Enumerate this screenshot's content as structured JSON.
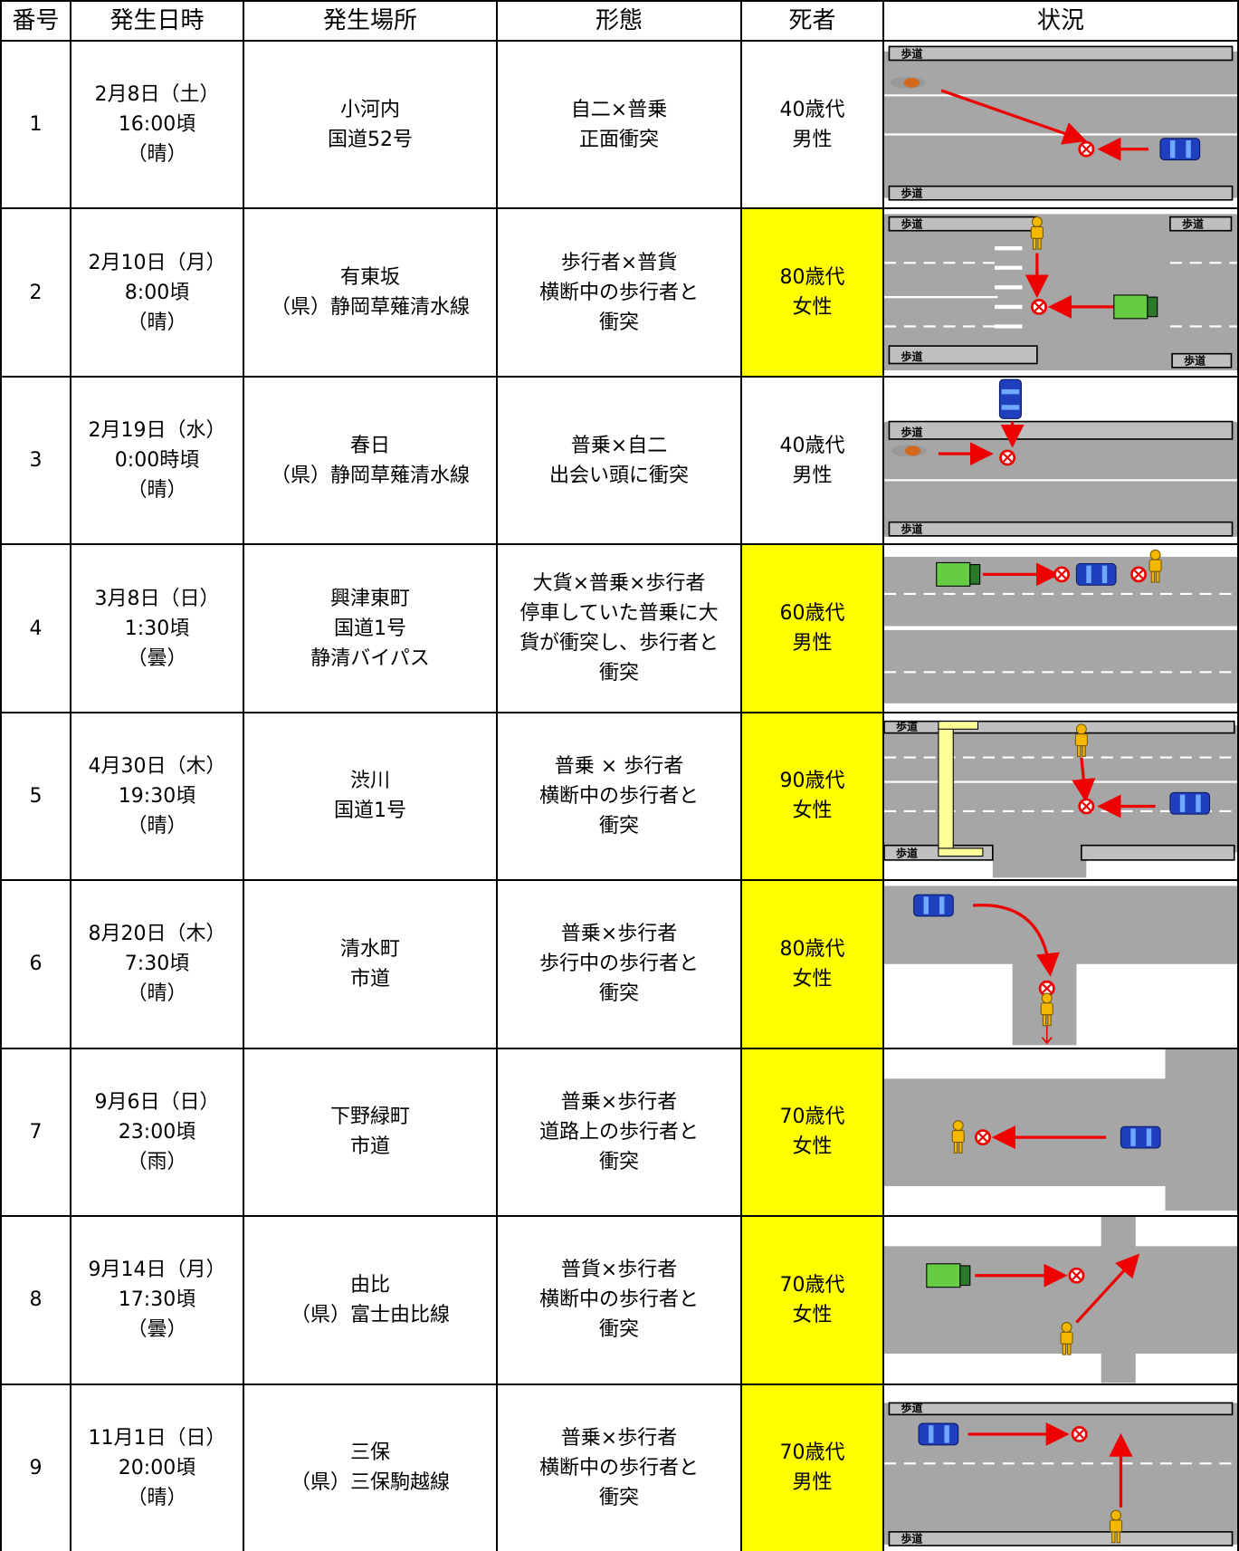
{
  "table": {
    "header": [
      "番号",
      "発生日時",
      "発生場所",
      "形態",
      "死者",
      "状況"
    ],
    "rows": [
      {
        "no": "1",
        "datetime": [
          "2月8日（土）",
          "16:00頃",
          "（晴）"
        ],
        "place": [
          "小河内",
          "国道52号"
        ],
        "type": [
          "自二×普乗",
          "正面衝突"
        ],
        "deceased": [
          "40歳代",
          "男性"
        ],
        "highlight": false,
        "labels": [
          "歩道",
          "歩道"
        ]
      },
      {
        "no": "2",
        "datetime": [
          "2月10日（月）",
          "8:00頃",
          "（晴）"
        ],
        "place": [
          "有東坂",
          "（県）静岡草薙清水線"
        ],
        "type": [
          "歩行者×普貨",
          "横断中の歩行者と",
          "衝突"
        ],
        "deceased": [
          "80歳代",
          "女性"
        ],
        "highlight": true,
        "labels": [
          "歩道",
          "歩道",
          "歩道",
          "歩道"
        ]
      },
      {
        "no": "3",
        "datetime": [
          "2月19日（水）",
          "0:00時頃",
          "（晴）"
        ],
        "place": [
          "春日",
          "（県）静岡草薙清水線"
        ],
        "type": [
          "普乗×自二",
          "出会い頭に衝突"
        ],
        "deceased": [
          "40歳代",
          "男性"
        ],
        "highlight": false,
        "labels": [
          "歩道",
          "歩道"
        ]
      },
      {
        "no": "4",
        "datetime": [
          "3月8日（日）",
          "1:30頃",
          "（曇）"
        ],
        "place": [
          "興津東町",
          "国道1号",
          "静清バイパス"
        ],
        "type": [
          "大貨×普乗×歩行者",
          "停車していた普乗に大",
          "貨が衝突し、歩行者と",
          "衝突"
        ],
        "deceased": [
          "60歳代",
          "男性"
        ],
        "highlight": true,
        "labels": []
      },
      {
        "no": "5",
        "datetime": [
          "4月30日（木）",
          "19:30頃",
          "（晴）"
        ],
        "place": [
          "渋川",
          "国道1号"
        ],
        "type": [
          "普乗 × 歩行者",
          "横断中の歩行者と",
          "衝突"
        ],
        "deceased": [
          "90歳代",
          "女性"
        ],
        "highlight": true,
        "labels": [
          "歩道",
          "歩道"
        ]
      },
      {
        "no": "6",
        "datetime": [
          "8月20日（木）",
          "7:30頃",
          "（晴）"
        ],
        "place": [
          "清水町",
          "市道"
        ],
        "type": [
          "普乗×歩行者",
          "歩行中の歩行者と",
          "衝突"
        ],
        "deceased": [
          "80歳代",
          "女性"
        ],
        "highlight": true,
        "labels": []
      },
      {
        "no": "7",
        "datetime": [
          "9月6日（日）",
          "23:00頃",
          "（雨）"
        ],
        "place": [
          "下野緑町",
          "市道"
        ],
        "type": [
          "普乗×歩行者",
          "道路上の歩行者と",
          "衝突"
        ],
        "deceased": [
          "70歳代",
          "女性"
        ],
        "highlight": true,
        "labels": []
      },
      {
        "no": "8",
        "datetime": [
          "9月14日（月）",
          "17:30頃",
          "（曇）"
        ],
        "place": [
          "由比",
          "（県）富士由比線"
        ],
        "type": [
          "普貨×歩行者",
          "横断中の歩行者と",
          "衝突"
        ],
        "deceased": [
          "70歳代",
          "女性"
        ],
        "highlight": true,
        "labels": []
      },
      {
        "no": "9",
        "datetime": [
          "11月1日（日）",
          "20:00頃",
          "（晴）"
        ],
        "place": [
          "三保",
          "（県）三保駒越線"
        ],
        "type": [
          "普乗×歩行者",
          "横断中の歩行者と",
          "衝突"
        ],
        "deceased": [
          "70歳代",
          "男性"
        ],
        "highlight": true,
        "labels": [
          "歩道",
          "歩道"
        ]
      }
    ]
  }
}
